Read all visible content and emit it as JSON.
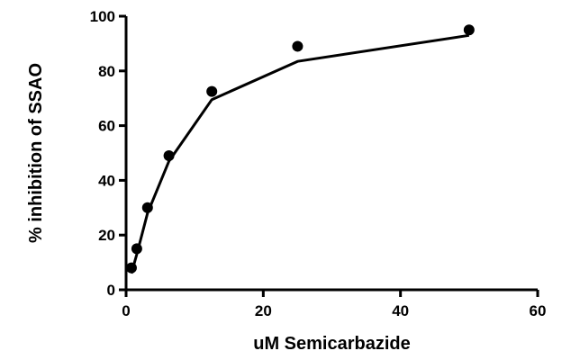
{
  "chart_data": {
    "type": "scatter",
    "xlabel": "uM Semicarbazide",
    "ylabel": "% inhibition of SSAO",
    "xlim": [
      0,
      60
    ],
    "ylim": [
      0,
      100
    ],
    "x_ticks": [
      0,
      20,
      40,
      60
    ],
    "y_ticks": [
      0,
      20,
      40,
      60,
      80,
      100
    ],
    "grid": false,
    "series": [
      {
        "style": "points",
        "color": "#000000",
        "x": [
          0.78,
          1.56,
          3.125,
          6.25,
          12.5,
          25,
          50
        ],
        "y": [
          8,
          15,
          30,
          49,
          72.5,
          89,
          95
        ]
      },
      {
        "style": "line",
        "color": "#000000",
        "x": [
          0.78,
          1.56,
          3.125,
          6.25,
          12.5,
          25,
          50
        ],
        "y": [
          6,
          13,
          28,
          47,
          69.5,
          83.5,
          93
        ]
      }
    ]
  }
}
